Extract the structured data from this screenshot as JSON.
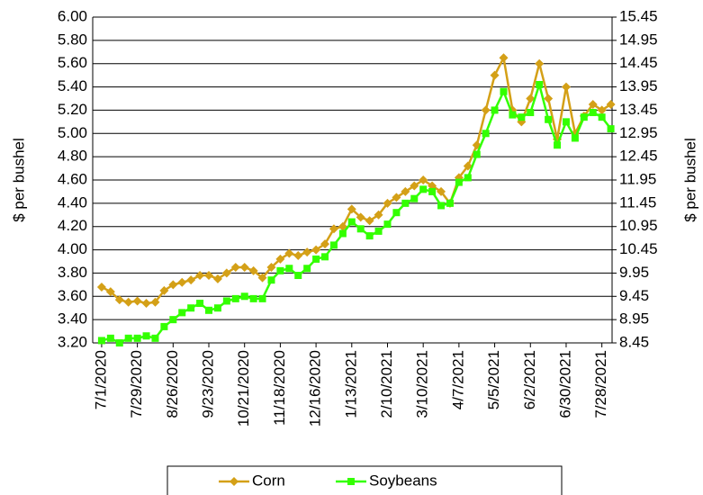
{
  "chart_data": {
    "type": "line",
    "y_label": "$ per bushel",
    "y2_label": "$ per bushel",
    "x": [
      "7/1/2020",
      "7/8/2020",
      "7/15/2020",
      "7/22/2020",
      "7/29/2020",
      "8/5/2020",
      "8/12/2020",
      "8/19/2020",
      "8/26/2020",
      "9/2/2020",
      "9/9/2020",
      "9/16/2020",
      "9/23/2020",
      "9/30/2020",
      "10/7/2020",
      "10/14/2020",
      "10/21/2020",
      "10/28/2020",
      "11/4/2020",
      "11/11/2020",
      "11/18/2020",
      "11/25/2020",
      "12/2/2020",
      "12/9/2020",
      "12/16/2020",
      "12/23/2020",
      "12/30/2020",
      "1/6/2021",
      "1/13/2021",
      "1/20/2021",
      "1/27/2021",
      "2/3/2021",
      "2/10/2021",
      "2/17/2021",
      "2/24/2021",
      "3/3/2021",
      "3/10/2021",
      "3/17/2021",
      "3/24/2021",
      "3/31/2021",
      "4/7/2021",
      "4/14/2021",
      "4/21/2021",
      "4/28/2021",
      "5/5/2021",
      "5/12/2021",
      "5/19/2021",
      "5/26/2021",
      "6/2/2021",
      "6/9/2021",
      "6/16/2021",
      "6/23/2021",
      "6/30/2021",
      "7/7/2021",
      "7/14/2021",
      "7/21/2021",
      "7/28/2021",
      "8/4/2021"
    ],
    "series": [
      {
        "name": "Corn",
        "color": "#d4a017",
        "marker": "diamond",
        "values": [
          3.68,
          3.64,
          3.57,
          3.55,
          3.56,
          3.54,
          3.55,
          3.65,
          3.7,
          3.72,
          3.74,
          3.78,
          3.78,
          3.75,
          3.8,
          3.85,
          3.85,
          3.82,
          3.76,
          3.85,
          3.92,
          3.97,
          3.95,
          3.98,
          4.0,
          4.05,
          4.18,
          4.2,
          4.35,
          4.28,
          4.25,
          4.3,
          4.4,
          4.45,
          4.5,
          4.55,
          4.6,
          4.55,
          4.5,
          4.4,
          4.62,
          4.72,
          4.9,
          5.2,
          5.5,
          5.65,
          5.2,
          5.1,
          5.3,
          5.6,
          5.3,
          4.95,
          5.4,
          5.0,
          5.15,
          5.25,
          5.2,
          5.25
        ]
      },
      {
        "name": "Soybeans",
        "color": "#33ff00",
        "marker": "square",
        "axis": "y2",
        "values": [
          8.5,
          8.55,
          8.45,
          8.55,
          8.55,
          8.6,
          8.55,
          8.8,
          8.95,
          9.1,
          9.2,
          9.3,
          9.15,
          9.2,
          9.35,
          9.4,
          9.45,
          9.4,
          9.4,
          9.8,
          10.0,
          10.05,
          9.9,
          10.05,
          10.25,
          10.3,
          10.55,
          10.8,
          11.05,
          10.9,
          10.75,
          10.85,
          11.0,
          11.25,
          11.45,
          11.55,
          11.75,
          11.7,
          11.4,
          11.45,
          11.9,
          12.0,
          12.5,
          12.95,
          13.45,
          13.85,
          13.35,
          13.3,
          13.4,
          14.0,
          13.25,
          12.7,
          13.2,
          12.85,
          13.3,
          13.4,
          13.3,
          13.05
        ]
      }
    ],
    "xlim": [
      "6/24/2020",
      "8/5/2021"
    ],
    "xticks": [
      "7/1/2020",
      "7/29/2020",
      "8/26/2020",
      "9/23/2020",
      "10/21/2020",
      "11/18/2020",
      "12/16/2020",
      "1/13/2021",
      "2/10/2021",
      "3/10/2021",
      "4/7/2021",
      "5/5/2021",
      "6/2/2021",
      "6/30/2021",
      "7/28/2021"
    ],
    "ylim": [
      3.2,
      6.0
    ],
    "yticks": [
      {
        "value": 3.2,
        "label": "3.20"
      },
      {
        "value": 3.4,
        "label": "3.40"
      },
      {
        "value": 3.6,
        "label": "3.60"
      },
      {
        "value": 3.8,
        "label": "3.80"
      },
      {
        "value": 4.0,
        "label": "4.00"
      },
      {
        "value": 4.2,
        "label": "4.20"
      },
      {
        "value": 4.4,
        "label": "4.40"
      },
      {
        "value": 4.6,
        "label": "4.60"
      },
      {
        "value": 4.8,
        "label": "4.80"
      },
      {
        "value": 5.0,
        "label": "5.00"
      },
      {
        "value": 5.2,
        "label": "5.20"
      },
      {
        "value": 5.4,
        "label": "5.40"
      },
      {
        "value": 5.6,
        "label": "5.60"
      },
      {
        "value": 5.8,
        "label": "5.80"
      },
      {
        "value": 6.0,
        "label": "6.00"
      }
    ],
    "y2lim": [
      8.45,
      15.45
    ],
    "y2ticks": [
      8.45,
      8.95,
      9.45,
      9.95,
      10.45,
      10.95,
      11.45,
      11.95,
      12.45,
      12.95,
      13.45,
      13.95,
      14.45,
      14.95,
      15.45
    ],
    "grid": true,
    "legend": "bottom"
  }
}
